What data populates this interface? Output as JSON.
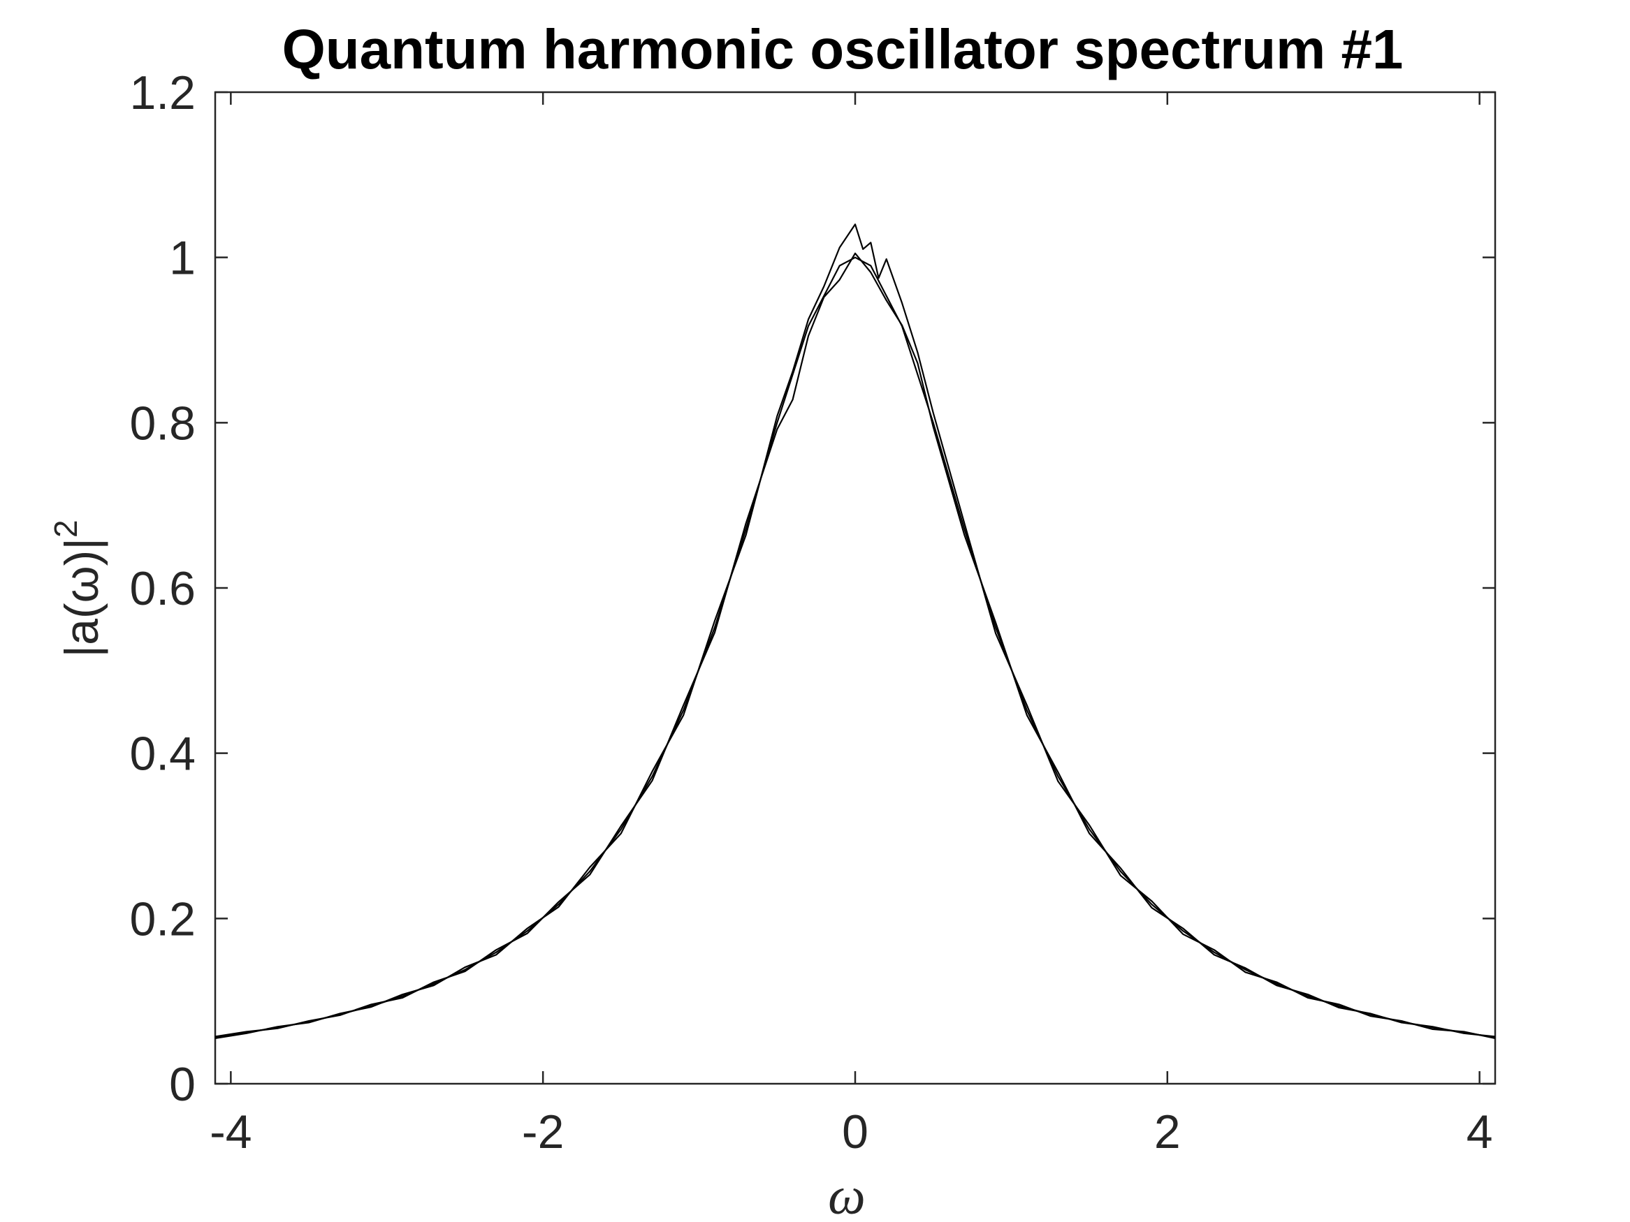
{
  "chart_data": {
    "type": "line",
    "title": "Quantum harmonic oscillator spectrum #1",
    "xlabel": "ω",
    "ylabel": "|a(ω)|",
    "ylabel_superscript": "2",
    "xlim": [
      -4.1,
      4.1
    ],
    "ylim": [
      0,
      1.2
    ],
    "xticks": [
      -4,
      -2,
      0,
      2,
      4
    ],
    "xtick_labels": [
      "-4",
      "-2",
      "0",
      "2",
      "4"
    ],
    "yticks": [
      0,
      0.2,
      0.4,
      0.6,
      0.8,
      1.0,
      1.2
    ],
    "ytick_labels": [
      "0",
      "0.2",
      "0.4",
      "0.6",
      "0.8",
      "1",
      "1.2"
    ],
    "grid": false,
    "legend": "none",
    "line_color": "#000000",
    "series": [
      {
        "style": "smooth",
        "x": [
          -4.1,
          -3.9,
          -3.7,
          -3.5,
          -3.3,
          -3.1,
          -2.9,
          -2.7,
          -2.5,
          -2.3,
          -2.1,
          -1.9,
          -1.7,
          -1.5,
          -1.3,
          -1.1,
          -0.9,
          -0.7,
          -0.5,
          -0.3,
          -0.1,
          0,
          0.1,
          0.3,
          0.5,
          0.7,
          0.9,
          1.1,
          1.3,
          1.5,
          1.7,
          1.9,
          2.1,
          2.3,
          2.5,
          2.7,
          2.9,
          3.1,
          3.3,
          3.5,
          3.7,
          3.9,
          4.1
        ],
        "y": [
          0.056,
          0.062,
          0.068,
          0.075,
          0.084,
          0.094,
          0.106,
          0.121,
          0.138,
          0.159,
          0.185,
          0.217,
          0.257,
          0.308,
          0.372,
          0.452,
          0.552,
          0.671,
          0.8,
          0.917,
          0.99,
          1.0,
          0.99,
          0.917,
          0.8,
          0.671,
          0.552,
          0.452,
          0.372,
          0.308,
          0.257,
          0.217,
          0.185,
          0.159,
          0.138,
          0.121,
          0.106,
          0.094,
          0.084,
          0.075,
          0.068,
          0.062,
          0.056
        ]
      },
      {
        "style": "noisy",
        "x": [
          -4.1,
          -3.9,
          -3.7,
          -3.5,
          -3.3,
          -3.1,
          -2.9,
          -2.7,
          -2.5,
          -2.3,
          -2.1,
          -1.9,
          -1.7,
          -1.5,
          -1.3,
          -1.1,
          -0.9,
          -0.7,
          -0.5,
          -0.4,
          -0.3,
          -0.2,
          -0.1,
          0,
          0.05,
          0.1,
          0.15,
          0.2,
          0.3,
          0.4,
          0.5,
          0.7,
          0.9,
          1.1,
          1.3,
          1.5,
          1.7,
          1.9,
          2.1,
          2.3,
          2.5,
          2.7,
          2.9,
          3.1,
          3.3,
          3.5,
          3.7,
          3.9,
          4.1
        ],
        "y": [
          0.055,
          0.061,
          0.069,
          0.074,
          0.085,
          0.093,
          0.108,
          0.119,
          0.141,
          0.156,
          0.188,
          0.214,
          0.262,
          0.303,
          0.378,
          0.446,
          0.56,
          0.664,
          0.808,
          0.862,
          0.925,
          0.965,
          1.012,
          1.04,
          1.01,
          1.018,
          0.975,
          0.998,
          0.945,
          0.885,
          0.812,
          0.678,
          0.545,
          0.458,
          0.366,
          0.313,
          0.252,
          0.221,
          0.181,
          0.162,
          0.135,
          0.123,
          0.104,
          0.096,
          0.082,
          0.076,
          0.066,
          0.063,
          0.055
        ]
      },
      {
        "style": "noisy",
        "x": [
          -4.1,
          -3.9,
          -3.7,
          -3.5,
          -3.3,
          -3.1,
          -2.9,
          -2.7,
          -2.5,
          -2.3,
          -2.1,
          -1.9,
          -1.7,
          -1.5,
          -1.3,
          -1.1,
          -0.9,
          -0.7,
          -0.5,
          -0.4,
          -0.3,
          -0.2,
          -0.1,
          0,
          0.1,
          0.2,
          0.3,
          0.4,
          0.5,
          0.7,
          0.9,
          1.1,
          1.3,
          1.5,
          1.7,
          1.9,
          2.1,
          2.3,
          2.5,
          2.7,
          2.9,
          3.1,
          3.3,
          3.5,
          3.7,
          3.9,
          4.1
        ],
        "y": [
          0.057,
          0.063,
          0.067,
          0.076,
          0.083,
          0.096,
          0.104,
          0.123,
          0.136,
          0.162,
          0.182,
          0.22,
          0.253,
          0.312,
          0.367,
          0.458,
          0.546,
          0.678,
          0.792,
          0.828,
          0.905,
          0.952,
          0.973,
          1.005,
          0.982,
          0.948,
          0.918,
          0.872,
          0.795,
          0.664,
          0.558,
          0.446,
          0.377,
          0.303,
          0.261,
          0.213,
          0.188,
          0.156,
          0.14,
          0.119,
          0.108,
          0.092,
          0.085,
          0.074,
          0.069,
          0.061,
          0.057
        ]
      }
    ]
  }
}
